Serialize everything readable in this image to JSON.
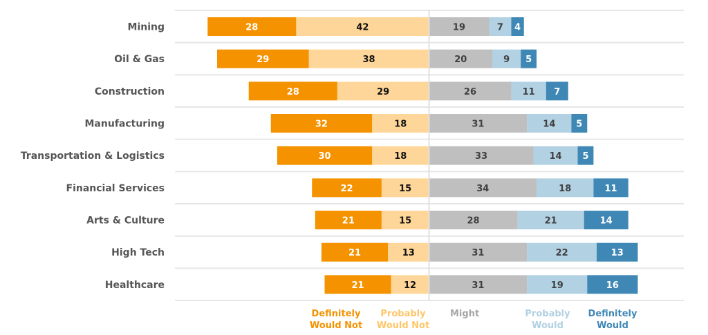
{
  "chart_data": {
    "type": "bar",
    "subtype": "diverging-stacked-horizontal",
    "title": "",
    "xlabel": "",
    "ylabel": "",
    "grid": true,
    "legend_position": "bottom",
    "categories": [
      "Mining",
      "Oil & Gas",
      "Construction",
      "Manufacturing",
      "Transportation & Logistics",
      "Financial Services",
      "Arts & Culture",
      "High Tech",
      "Healthcare"
    ],
    "series": [
      {
        "name": "Definitely Would Not",
        "legend_lines": [
          "Definitely",
          "Would Not"
        ],
        "side": "negative",
        "color": "#F59200",
        "legend_color": "#F59200",
        "label_color": "#FFFFFF",
        "values": [
          28,
          29,
          28,
          32,
          30,
          22,
          21,
          21,
          21
        ]
      },
      {
        "name": "Probably Would Not",
        "legend_lines": [
          "Probably",
          "Would Not"
        ],
        "side": "negative",
        "color": "#FFD699",
        "legend_color": "#FFC66A",
        "label_color": "#111111",
        "values": [
          42,
          38,
          29,
          18,
          18,
          15,
          15,
          13,
          12
        ]
      },
      {
        "name": "Might",
        "legend_lines": [
          "Might"
        ],
        "side": "positive",
        "color": "#BFBFBF",
        "legend_color": "#A6A6A6",
        "label_color": "#404040",
        "values": [
          19,
          20,
          26,
          31,
          33,
          34,
          28,
          31,
          31
        ]
      },
      {
        "name": "Probably Would",
        "legend_lines": [
          "Probably",
          "Would"
        ],
        "side": "positive",
        "color": "#B2D1E3",
        "legend_color": "#B2D1E3",
        "label_color": "#404040",
        "values": [
          7,
          9,
          11,
          14,
          14,
          18,
          21,
          22,
          19
        ]
      },
      {
        "name": "Definitely Would",
        "legend_lines": [
          "Definitely",
          "Would"
        ],
        "side": "positive",
        "color": "#3F88B6",
        "legend_color": "#3F88B6",
        "label_color": "#FFFFFF",
        "values": [
          4,
          5,
          7,
          5,
          5,
          11,
          14,
          13,
          16
        ]
      }
    ],
    "xlim": [
      -70,
      81
    ]
  }
}
